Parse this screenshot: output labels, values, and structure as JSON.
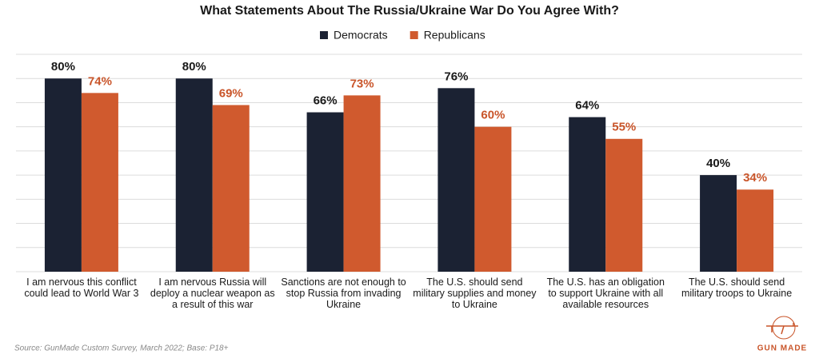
{
  "chart_data": {
    "type": "bar",
    "title": "What Statements About The Russia/Ukraine War Do You Agree With?",
    "categories": [
      "I am nervous this conflict\ncould lead to World War 3",
      "I am nervous Russia will\ndeploy a nuclear weapon as\na result of this war",
      "Sanctions are not enough to\nstop Russia from invading\nUkraine",
      "The U.S. should send\nmilitary supplies and money\nto Ukraine",
      "The U.S. has an obligation\nto support Ukraine with all\navailable resources",
      "The U.S. should send\nmilitary troops to Ukraine"
    ],
    "series": [
      {
        "name": "Democrats",
        "color": "#1b2233",
        "label_color": "#1a1a1a",
        "values": [
          80,
          80,
          66,
          76,
          64,
          40
        ],
        "value_labels": [
          "80%",
          "80%",
          "66%",
          "76%",
          "64%",
          "40%"
        ]
      },
      {
        "name": "Republicans",
        "color": "#d05a2e",
        "label_color": "#c9552a",
        "values": [
          74,
          69,
          73,
          60,
          55,
          34
        ],
        "value_labels": [
          "74%",
          "69%",
          "73%",
          "60%",
          "55%",
          "34%"
        ]
      }
    ],
    "ylim": [
      0,
      90
    ],
    "yticks": [
      0,
      10,
      20,
      30,
      40,
      50,
      60,
      70,
      80,
      90
    ],
    "grid": true,
    "source": "Source: GunMade Custom Survey, March 2022; Base: P18+",
    "logo": "GUN MADE"
  }
}
